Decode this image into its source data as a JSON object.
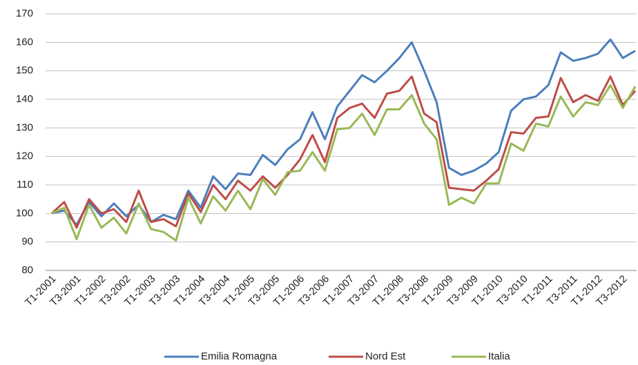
{
  "chart_data": {
    "type": "line",
    "categories": [
      "T1-2001",
      null,
      "T3-2001",
      null,
      "T1-2002",
      null,
      "T3-2002",
      null,
      "T1-2003",
      null,
      "T3-2003",
      null,
      "T1-2004",
      null,
      "T3-2004",
      null,
      "T1-2005",
      null,
      "T3-2005",
      null,
      "T1-2006",
      null,
      "T3-2006",
      null,
      "T1-2007",
      null,
      "T3-2007",
      null,
      "T1-2008",
      null,
      "T3-2008",
      null,
      "T1-2009",
      null,
      "T3-2009",
      null,
      "T1-2010",
      null,
      "T3-2010",
      null,
      "T1-2011",
      null,
      "T3-2011",
      null,
      "T1-2012",
      null,
      "T3-2012",
      null
    ],
    "series": [
      {
        "name": "Emilia Romagna",
        "color": "#4a7ebb",
        "values": [
          100,
          101,
          96,
          104,
          99,
          103.5,
          99,
          103,
          97,
          99.5,
          98,
          108,
          102,
          113,
          108.5,
          114,
          113.5,
          120.5,
          117,
          122.5,
          126,
          135.5,
          126,
          137.5,
          143,
          148.5,
          146,
          150,
          154.5,
          160,
          150,
          139,
          116,
          113.5,
          115,
          117.5,
          121.5,
          136,
          140,
          141,
          145,
          156.5,
          153.5,
          154.5,
          156,
          161,
          154.5,
          157
        ]
      },
      {
        "name": "Nord Est",
        "color": "#be4b48",
        "values": [
          100,
          104,
          95,
          105,
          100,
          101.5,
          97,
          108,
          97,
          98,
          95.5,
          107,
          100.5,
          110,
          105,
          111.5,
          108,
          113,
          109,
          113.5,
          119,
          127.5,
          118,
          133.5,
          137,
          138.5,
          133.5,
          142,
          143,
          148,
          135,
          132,
          109,
          108.5,
          108,
          111.5,
          115.5,
          128.5,
          128,
          133.5,
          134,
          147.5,
          139,
          141.5,
          139.5,
          148,
          138,
          143
        ]
      },
      {
        "name": "Italia",
        "color": "#98b954",
        "values": [
          100,
          102,
          91,
          103,
          95,
          98.5,
          93,
          103.5,
          94.5,
          93.5,
          90.5,
          105.5,
          96.5,
          106,
          101,
          108,
          101.5,
          112,
          106.5,
          114.5,
          115,
          121.5,
          115,
          129.5,
          130,
          135,
          127.5,
          136.5,
          136.5,
          141.5,
          131.5,
          126,
          103,
          105.5,
          103.5,
          110.5,
          110.5,
          124.5,
          122,
          131.5,
          130.5,
          141,
          134,
          139,
          138,
          145,
          137,
          144.5
        ]
      }
    ],
    "ylim": [
      80,
      170
    ],
    "yticks": [
      80,
      90,
      100,
      110,
      120,
      130,
      140,
      150,
      160,
      170
    ],
    "grid": true,
    "legend": "bottom"
  }
}
